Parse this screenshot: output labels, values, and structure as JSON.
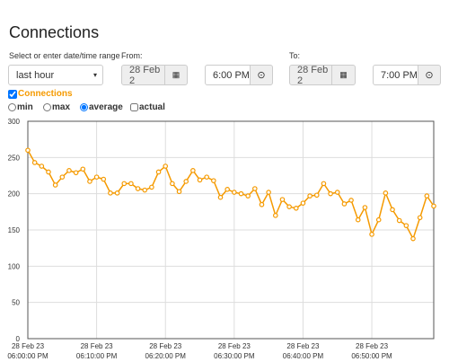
{
  "page": {
    "title": "Connections",
    "range_label": "Select or enter date/time range",
    "range_value": "last hour",
    "from_label": "From:",
    "from_date": "28 Feb 2",
    "from_time": "6:00 PM",
    "to_label": "To:",
    "to_date": "28 Feb 2",
    "to_time": "7:00 PM",
    "series_toggle": "Connections",
    "options": [
      "min",
      "max",
      "average",
      "actual"
    ],
    "selected_option": "average"
  },
  "chart_data": {
    "type": "line",
    "color": "#f59a00",
    "grid": true,
    "x": [
      0,
      1,
      2,
      3,
      4,
      5,
      6,
      7,
      8,
      9,
      10,
      11,
      12,
      13,
      14,
      15,
      16,
      17,
      18,
      19,
      20,
      21,
      22,
      23,
      24,
      25,
      26,
      27,
      28,
      29,
      30,
      31,
      32,
      33,
      34,
      35,
      36,
      37,
      38,
      39,
      40,
      41,
      42,
      43,
      44,
      45,
      46,
      47,
      48,
      49,
      50,
      51,
      52,
      53,
      54,
      55,
      56,
      57,
      58,
      59
    ],
    "series": [
      {
        "name": "Connections",
        "color": "#f59a00",
        "values": [
          260,
          243,
          238,
          230,
          212,
          223,
          232,
          229,
          234,
          217,
          223,
          220,
          201,
          201,
          214,
          214,
          207,
          205,
          209,
          230,
          238,
          214,
          203,
          217,
          232,
          219,
          223,
          218,
          195,
          206,
          202,
          200,
          197,
          207,
          185,
          202,
          170,
          192,
          182,
          180,
          187,
          197,
          198,
          214,
          200,
          202,
          186,
          191,
          164,
          181,
          144,
          164,
          201,
          178,
          163,
          156,
          138,
          167,
          197,
          183
        ]
      }
    ],
    "xlim": [
      0,
      59
    ],
    "xticks": [
      {
        "value": 0,
        "label": [
          "28 Feb 23",
          "06:00:00 PM"
        ]
      },
      {
        "value": 10,
        "label": [
          "28 Feb 23",
          "06:10:00 PM"
        ]
      },
      {
        "value": 20,
        "label": [
          "28 Feb 23",
          "06:20:00 PM"
        ]
      },
      {
        "value": 30,
        "label": [
          "28 Feb 23",
          "06:30:00 PM"
        ]
      },
      {
        "value": 40,
        "label": [
          "28 Feb 23",
          "06:40:00 PM"
        ]
      },
      {
        "value": 50,
        "label": [
          "28 Feb 23",
          "06:50:00 PM"
        ]
      }
    ],
    "ylim": [
      0,
      300
    ],
    "yticks": [
      0,
      50,
      100,
      150,
      200,
      250,
      300
    ]
  }
}
